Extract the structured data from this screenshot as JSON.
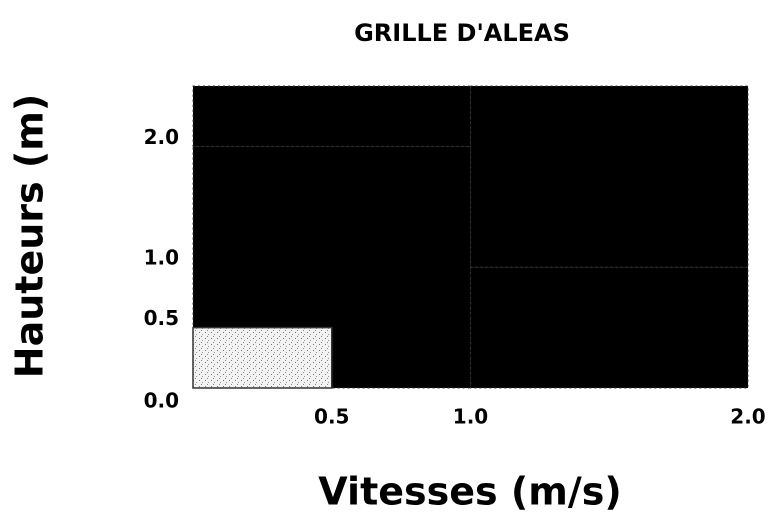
{
  "chart_data": {
    "type": "grid",
    "title": "GRILLE D'ALEAS",
    "x_label": "Vitesses (m/s)",
    "y_label": "Hauteurs (m)",
    "xlim": [
      0,
      2
    ],
    "ylim": [
      0,
      2.5
    ],
    "xticks": [
      0.5,
      {
        "value": 1,
        "label": "1.0"
      },
      {
        "value": 2,
        "label": "2.0"
      }
    ],
    "yticks": [
      {
        "value": 0,
        "label": "0.0"
      },
      0.5,
      {
        "value": 1,
        "label": "1.0"
      },
      {
        "value": 2,
        "label": "2.0"
      }
    ],
    "regions": [
      {
        "x": [
          0,
          1
        ],
        "y": [
          0,
          2
        ],
        "color": "#000000"
      },
      {
        "x": [
          0,
          1
        ],
        "y": [
          2,
          2.5
        ],
        "color": "#000000"
      },
      {
        "x": [
          1,
          2
        ],
        "y": [
          1,
          2.5
        ],
        "color": "#000000"
      },
      {
        "x": [
          1,
          2
        ],
        "y": [
          0,
          1
        ],
        "color": "#000000"
      },
      {
        "x": [
          0,
          0.5
        ],
        "y": [
          0,
          0.5
        ],
        "color": "#e6e6e6"
      }
    ]
  }
}
